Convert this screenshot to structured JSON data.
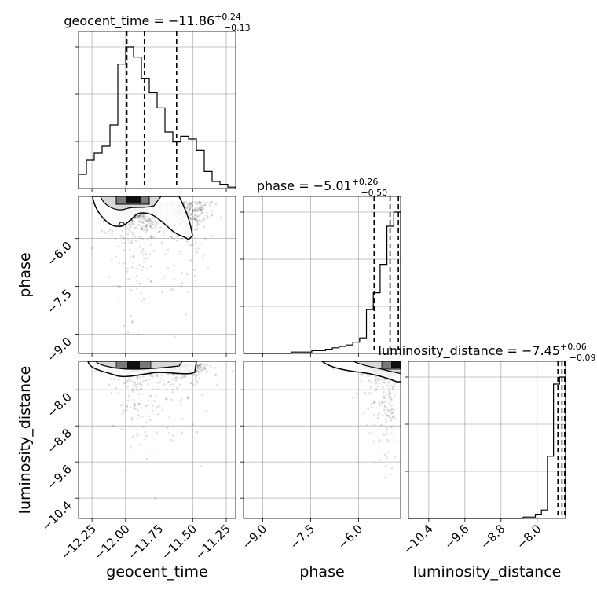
{
  "chart_data": {
    "type": "corner",
    "parameters": [
      "geocent_time",
      "phase",
      "luminosity_distance"
    ],
    "panel_titles": {
      "geocent_time": {
        "prefix": "geocent_time = −11.86",
        "plus": "+0.24",
        "minus": "−0.13"
      },
      "phase": {
        "prefix": "phase = −5.01",
        "plus": "+0.26",
        "minus": "−0.50"
      },
      "luminosity_distance": {
        "prefix": "luminosity_distance = −7.45",
        "plus": "+0.06",
        "minus": "−0.09"
      }
    },
    "axis_ranges": {
      "geocent_time": [
        -12.35,
        -11.18
      ],
      "phase": [
        -9.6,
        -4.68
      ],
      "luminosity_distance": [
        -10.85,
        -7.37
      ]
    },
    "ticks": {
      "geocent_time": [
        -12.25,
        -12.0,
        -11.75,
        -11.5,
        -11.25
      ],
      "phase": [
        -9.0,
        -7.5,
        -6.0
      ],
      "luminosity_distance": [
        -10.4,
        -9.6,
        -8.8,
        -8.0
      ]
    },
    "tick_labels": {
      "geocent_time": [
        "−12.25",
        "−12.00",
        "−11.75",
        "−11.50",
        "−11.25"
      ],
      "phase": [
        "−9.0",
        "−7.5",
        "−6.0"
      ],
      "luminosity_distance": [
        "−10.4",
        "−9.6",
        "−8.8",
        "−8.0"
      ]
    },
    "quantile_lines": {
      "geocent_time": [
        -11.99,
        -11.86,
        -11.62
      ],
      "phase": [
        -5.51,
        -5.01,
        -4.75
      ],
      "luminosity_distance": [
        -7.54,
        -7.45,
        -7.39
      ]
    },
    "histograms": {
      "geocent_time": {
        "range": [
          -12.35,
          -11.18
        ],
        "counts": [
          0.1,
          0.2,
          0.25,
          0.3,
          0.45,
          0.88,
          1.0,
          0.93,
          0.78,
          0.68,
          0.57,
          0.4,
          0.33,
          0.37,
          0.35,
          0.27,
          0.12,
          0.05,
          0.03,
          0.01
        ]
      },
      "phase": {
        "range": [
          -9.6,
          -4.68
        ],
        "counts": [
          0,
          0,
          0,
          0,
          0,
          0,
          0,
          0.01,
          0.01,
          0.01,
          0.02,
          0.02,
          0.03,
          0.04,
          0.05,
          0.06,
          0.08,
          0.11,
          0.31,
          0.43,
          0.63,
          0.9,
          1.0
        ]
      },
      "luminosity_distance": {
        "range": [
          -10.85,
          -7.37
        ],
        "counts": [
          0,
          0,
          0,
          0,
          0,
          0,
          0,
          0,
          0,
          0,
          0,
          0,
          0,
          0,
          0,
          0,
          0,
          0,
          0,
          0.01,
          0.01,
          0.03,
          0.06,
          0.44,
          0.95,
          1.0
        ]
      }
    },
    "grid": true
  }
}
